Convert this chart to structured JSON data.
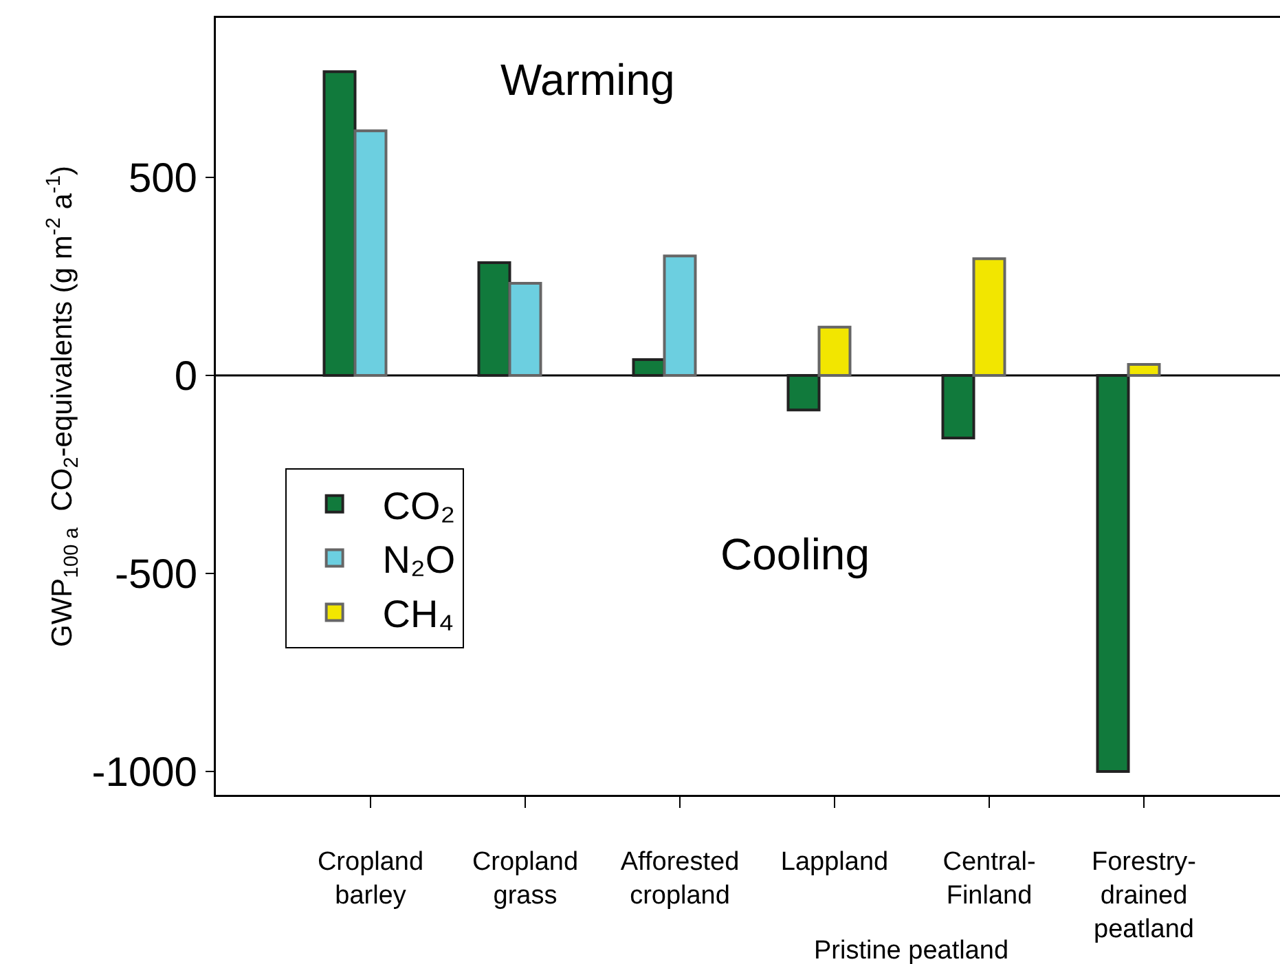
{
  "chart_data": {
    "type": "bar",
    "ylabel": "GWP$_{100 a}$  CO$_{2}$-equivalents (g m$^{-2}$ a$^{-1}$)",
    "categories": [
      "Cropland\nbarley",
      "Cropland\ngrass",
      "Afforested\ncropland",
      "Lappland",
      "Central-\nFinland",
      "Forestry-\ndrained\npeatland"
    ],
    "series": [
      {
        "name": "CO₂",
        "color": "#117a3c",
        "values": [
          767,
          285,
          40,
          -87,
          -158,
          -1000
        ]
      },
      {
        "name": "N₂O",
        "color": "#6ccfe0",
        "values": [
          618,
          233,
          302,
          null,
          null,
          null
        ]
      },
      {
        "name": "CH₄",
        "color": "#f2e600",
        "values": [
          null,
          null,
          null,
          122,
          295,
          28
        ]
      }
    ],
    "ylim": [
      -1059,
      903
    ],
    "yticks": [
      -1000,
      -500,
      0,
      500
    ],
    "annotations": [
      "Warming",
      "Cooling",
      "Pristine peatland"
    ],
    "ref_lines": [
      {
        "axis": "y",
        "value": 0,
        "color": "#000000"
      }
    ],
    "grid": false,
    "legend": "bottom left"
  }
}
